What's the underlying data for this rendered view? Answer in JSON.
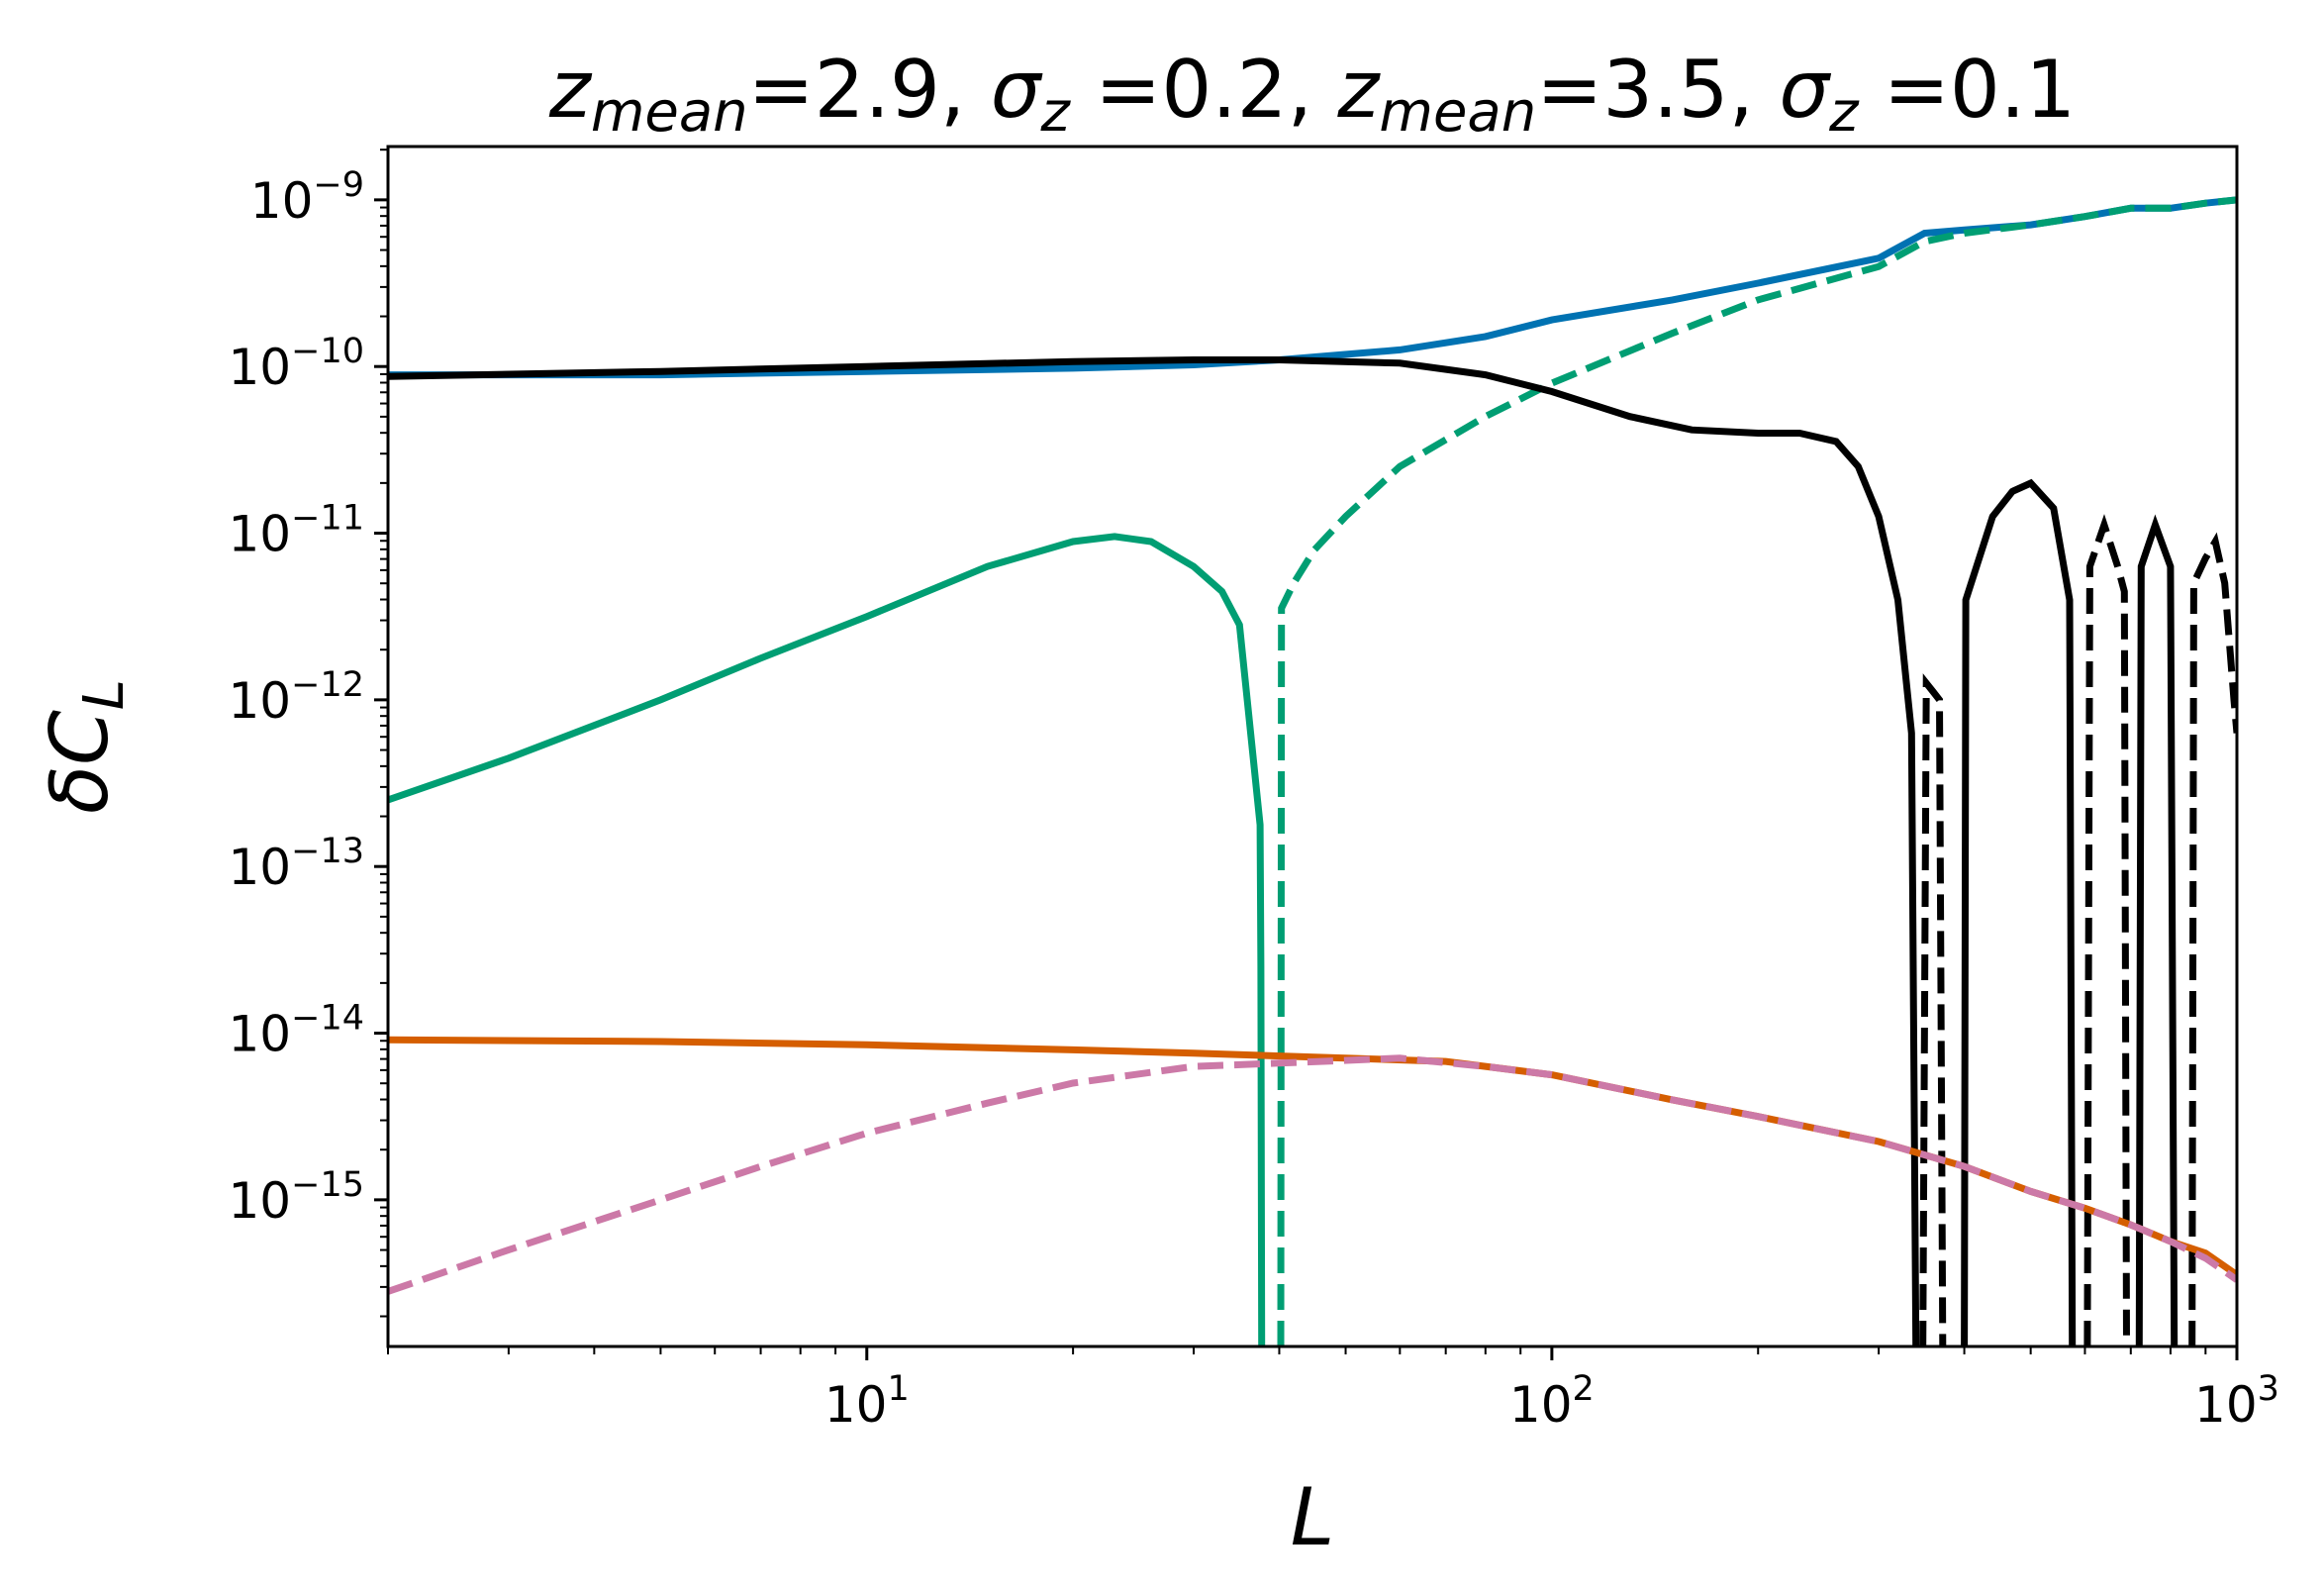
{
  "chart_data": {
    "type": "line",
    "title": {
      "parts": [
        {
          "text": "z",
          "style": "italic"
        },
        {
          "text": "mean",
          "style": "italic-sub"
        },
        {
          "text": "=2.9, ",
          "style": "normal"
        },
        {
          "text": "σ",
          "style": "italic"
        },
        {
          "text": "z",
          "style": "italic-sub"
        },
        {
          "text": " =0.2, ",
          "style": "normal"
        },
        {
          "text": "z",
          "style": "italic"
        },
        {
          "text": "mean",
          "style": "italic-sub"
        },
        {
          "text": "=3.5, ",
          "style": "normal"
        },
        {
          "text": "σ",
          "style": "italic"
        },
        {
          "text": "z",
          "style": "italic-sub"
        },
        {
          "text": " =0.1",
          "style": "normal"
        }
      ]
    },
    "xlabel": "L",
    "ylabel": {
      "main": "δC",
      "sub": "L"
    },
    "xscale": "log",
    "yscale": "log",
    "xlim": [
      2,
      1000
    ],
    "ylim_log10": [
      -15.88,
      -8.68
    ],
    "x_ticks": [
      {
        "base": "10",
        "exp": "1",
        "value": 10
      },
      {
        "base": "10",
        "exp": "2",
        "value": 100
      },
      {
        "base": "10",
        "exp": "3",
        "value": 1000
      }
    ],
    "y_ticks": [
      {
        "base": "10",
        "exp": "−9",
        "log": -9
      },
      {
        "base": "10",
        "exp": "−10",
        "log": -10
      },
      {
        "base": "10",
        "exp": "−11",
        "log": -11
      },
      {
        "base": "10",
        "exp": "−12",
        "log": -12
      },
      {
        "base": "10",
        "exp": "−13",
        "log": -13
      },
      {
        "base": "10",
        "exp": "−14",
        "log": -14
      },
      {
        "base": "10",
        "exp": "−15",
        "log": -15
      }
    ],
    "series": [
      {
        "name": "blue-solid",
        "color": "#0072b2",
        "dash": "solid",
        "points": [
          [
            2,
            -10.05
          ],
          [
            5,
            -10.05
          ],
          [
            10,
            -10.03
          ],
          [
            20,
            -10.01
          ],
          [
            30,
            -9.99
          ],
          [
            40,
            -9.96
          ],
          [
            60,
            -9.9
          ],
          [
            80,
            -9.82
          ],
          [
            100,
            -9.72
          ],
          [
            150,
            -9.6
          ],
          [
            200,
            -9.5
          ],
          [
            300,
            -9.35
          ],
          [
            350,
            -9.2
          ],
          [
            400,
            -9.18
          ],
          [
            500,
            -9.15
          ],
          [
            600,
            -9.1
          ],
          [
            700,
            -9.05
          ],
          [
            800,
            -9.05
          ],
          [
            900,
            -9.02
          ],
          [
            1000,
            -9.0
          ]
        ]
      },
      {
        "name": "green-solid",
        "color": "#009e73",
        "dash": "solid",
        "points": [
          [
            2,
            -12.6
          ],
          [
            3,
            -12.35
          ],
          [
            5,
            -12.0
          ],
          [
            7,
            -11.75
          ],
          [
            10,
            -11.5
          ],
          [
            15,
            -11.2
          ],
          [
            20,
            -11.05
          ],
          [
            23,
            -11.02
          ],
          [
            26,
            -11.05
          ],
          [
            30,
            -11.2
          ],
          [
            33,
            -11.35
          ],
          [
            35,
            -11.55
          ],
          [
            37.5,
            -12.75
          ],
          [
            37.6,
            -13.6
          ],
          [
            37.7,
            -15.88
          ]
        ]
      },
      {
        "name": "green-dashed",
        "color": "#009e73",
        "dash": "dashed",
        "points": [
          [
            40.2,
            -15.88
          ],
          [
            40.3,
            -11.45
          ],
          [
            42,
            -11.3
          ],
          [
            45,
            -11.1
          ],
          [
            50,
            -10.9
          ],
          [
            60,
            -10.6
          ],
          [
            80,
            -10.3
          ],
          [
            100,
            -10.1
          ],
          [
            150,
            -9.8
          ],
          [
            200,
            -9.6
          ],
          [
            300,
            -9.4
          ],
          [
            350,
            -9.25
          ],
          [
            400,
            -9.2
          ],
          [
            500,
            -9.15
          ],
          [
            600,
            -9.1
          ],
          [
            700,
            -9.05
          ],
          [
            800,
            -9.05
          ],
          [
            900,
            -9.02
          ],
          [
            1000,
            -9.0
          ]
        ]
      },
      {
        "name": "black-solid",
        "color": "#000000",
        "dash": "solid",
        "points": [
          [
            2,
            -10.06
          ],
          [
            5,
            -10.03
          ],
          [
            10,
            -10.0
          ],
          [
            20,
            -9.97
          ],
          [
            30,
            -9.96
          ],
          [
            40,
            -9.96
          ],
          [
            60,
            -9.98
          ],
          [
            80,
            -10.05
          ],
          [
            100,
            -10.15
          ],
          [
            130,
            -10.3
          ],
          [
            160,
            -10.38
          ],
          [
            200,
            -10.4
          ],
          [
            230,
            -10.4
          ],
          [
            260,
            -10.45
          ],
          [
            280,
            -10.6
          ],
          [
            300,
            -10.9
          ],
          [
            320,
            -11.4
          ],
          [
            335,
            -12.2
          ],
          [
            340,
            -15.88
          ]
        ]
      },
      {
        "name": "black-dashed-1",
        "color": "#000000",
        "dash": "dashed",
        "points": [
          [
            348,
            -15.88
          ],
          [
            352,
            -11.9
          ],
          [
            360,
            -11.95
          ],
          [
            368,
            -12.0
          ],
          [
            372,
            -15.88
          ]
        ]
      },
      {
        "name": "black-solid-2",
        "color": "#000000",
        "dash": "solid",
        "points": [
          [
            400,
            -15.88
          ],
          [
            402,
            -11.4
          ],
          [
            440,
            -10.9
          ],
          [
            470,
            -10.75
          ],
          [
            500,
            -10.7
          ],
          [
            540,
            -10.85
          ],
          [
            570,
            -11.4
          ],
          [
            575,
            -15.88
          ]
        ]
      },
      {
        "name": "black-dashed-2",
        "color": "#000000",
        "dash": "dashed",
        "points": [
          [
            605,
            -15.88
          ],
          [
            610,
            -11.2
          ],
          [
            640,
            -10.95
          ],
          [
            670,
            -11.2
          ],
          [
            685,
            -11.35
          ],
          [
            690,
            -15.88
          ]
        ]
      },
      {
        "name": "black-solid-3",
        "color": "#000000",
        "dash": "solid",
        "points": [
          [
            720,
            -15.88
          ],
          [
            725,
            -11.2
          ],
          [
            760,
            -10.95
          ],
          [
            800,
            -11.2
          ],
          [
            810,
            -15.88
          ]
        ]
      },
      {
        "name": "black-dashed-3",
        "color": "#000000",
        "dash": "dashed",
        "points": [
          [
            860,
            -15.88
          ],
          [
            865,
            -11.3
          ],
          [
            900,
            -11.15
          ],
          [
            930,
            -11.05
          ],
          [
            960,
            -11.3
          ],
          [
            990,
            -12.0
          ],
          [
            1000,
            -12.2
          ]
        ]
      },
      {
        "name": "orange-solid",
        "color": "#d55e00",
        "dash": "solid",
        "points": [
          [
            2,
            -14.04
          ],
          [
            5,
            -14.05
          ],
          [
            10,
            -14.07
          ],
          [
            20,
            -14.1
          ],
          [
            30,
            -14.12
          ],
          [
            50,
            -14.15
          ],
          [
            70,
            -14.17
          ],
          [
            100,
            -14.25
          ],
          [
            150,
            -14.4
          ],
          [
            200,
            -14.5
          ],
          [
            300,
            -14.65
          ],
          [
            400,
            -14.8
          ],
          [
            500,
            -14.95
          ],
          [
            600,
            -15.05
          ],
          [
            700,
            -15.15
          ],
          [
            800,
            -15.25
          ],
          [
            900,
            -15.32
          ],
          [
            1000,
            -15.45
          ]
        ]
      },
      {
        "name": "pink-dashed",
        "color": "#cc79a7",
        "dash": "dashed",
        "points": [
          [
            2,
            -15.55
          ],
          [
            3,
            -15.3
          ],
          [
            5,
            -15.0
          ],
          [
            7,
            -14.8
          ],
          [
            10,
            -14.6
          ],
          [
            15,
            -14.42
          ],
          [
            20,
            -14.3
          ],
          [
            30,
            -14.2
          ],
          [
            40,
            -14.18
          ],
          [
            60,
            -14.15
          ],
          [
            80,
            -14.2
          ],
          [
            100,
            -14.25
          ],
          [
            150,
            -14.4
          ],
          [
            200,
            -14.5
          ],
          [
            300,
            -14.65
          ],
          [
            400,
            -14.8
          ],
          [
            500,
            -14.95
          ],
          [
            600,
            -15.05
          ],
          [
            700,
            -15.15
          ],
          [
            800,
            -15.25
          ],
          [
            900,
            -15.35
          ],
          [
            1000,
            -15.48
          ]
        ]
      }
    ]
  }
}
